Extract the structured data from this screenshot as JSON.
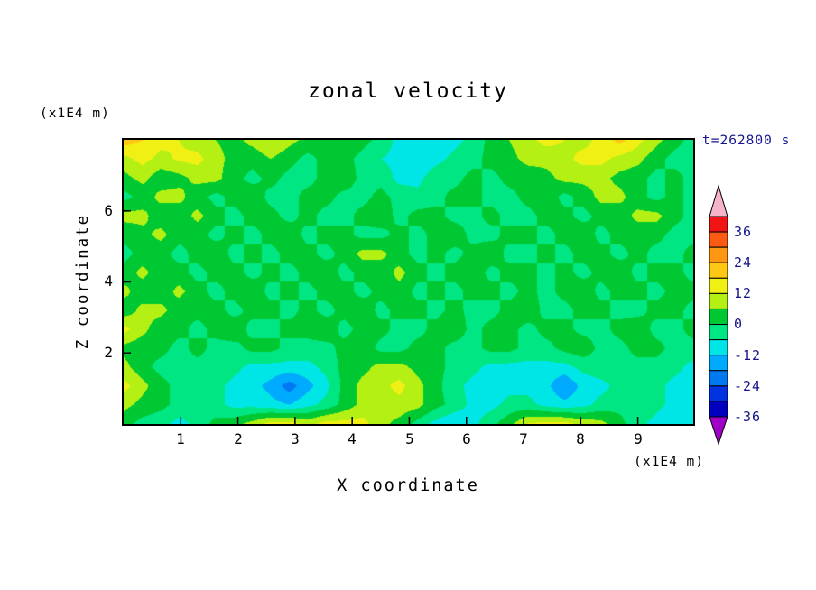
{
  "chart_data": {
    "type": "heatmap",
    "title": "zonal velocity",
    "xlabel": "X coordinate",
    "zlabel": "Z coordinate",
    "x_unit_label": "(x1E4 m)",
    "z_unit_label": "(x1E4 m)",
    "annotation": "t=262800 s",
    "x_range": [
      0,
      9.97
    ],
    "z_range": [
      0,
      8
    ],
    "x_ticks": [
      {
        "value": 1,
        "label": "1"
      },
      {
        "value": 2,
        "label": "2"
      },
      {
        "value": 3,
        "label": "3"
      },
      {
        "value": 4,
        "label": "4"
      },
      {
        "value": 5,
        "label": "5"
      },
      {
        "value": 6,
        "label": "6"
      },
      {
        "value": 7,
        "label": "7"
      },
      {
        "value": 8,
        "label": "8"
      },
      {
        "value": 9,
        "label": "9"
      }
    ],
    "z_ticks": [
      {
        "value": 2,
        "label": "2"
      },
      {
        "value": 4,
        "label": "4"
      },
      {
        "value": 6,
        "label": "6"
      }
    ],
    "colorbar": {
      "tick_labels": [
        "36",
        "24",
        "12",
        "0",
        "-12",
        "-24",
        "-36"
      ],
      "max": 42,
      "min": -36,
      "step": 6,
      "top_arrow_color": "#f5b4c8",
      "bottom_arrow_color": "#a000c8"
    },
    "levels": {
      "min": -36,
      "step": 6
    },
    "band_colors_low_to_high": [
      "#a000c8",
      "#0000be",
      "#0032e1",
      "#0078f0",
      "#00aaff",
      "#00e6e6",
      "#00e682",
      "#00c832",
      "#b4f014",
      "#f0f014",
      "#ffc814",
      "#ff9614",
      "#ff5a14",
      "#f01414",
      "#f5b4c8"
    ],
    "text_color": "#000000",
    "accent_text_color": "#15158c",
    "grid": {
      "nx": 32,
      "nz": 16,
      "values": [
        [
          21,
          18,
          14,
          12,
          9,
          6,
          4,
          8,
          12,
          8,
          4,
          2,
          4,
          2,
          -2,
          -8,
          -12,
          -12,
          -8,
          -4,
          2,
          6,
          10,
          14,
          12,
          10,
          14,
          20,
          14,
          8,
          2,
          -2
        ],
        [
          10,
          14,
          10,
          13,
          14,
          8,
          4,
          2,
          6,
          2,
          -2,
          2,
          2,
          -2,
          -6,
          -8,
          -12,
          -8,
          -4,
          -2,
          2,
          4,
          8,
          8,
          10,
          14,
          14,
          10,
          8,
          2,
          -2,
          -2
        ],
        [
          4,
          8,
          2,
          4,
          8,
          8,
          2,
          -2,
          2,
          -2,
          -2,
          2,
          4,
          -2,
          -2,
          -8,
          -8,
          -2,
          -2,
          2,
          -2,
          2,
          2,
          4,
          8,
          8,
          8,
          4,
          2,
          -2,
          2,
          -2
        ],
        [
          -2,
          2,
          8,
          8,
          2,
          -2,
          2,
          4,
          -2,
          -2,
          2,
          2,
          -2,
          -2,
          2,
          -2,
          -4,
          -2,
          2,
          2,
          -2,
          -2,
          2,
          4,
          -2,
          2,
          8,
          8,
          2,
          -2,
          2,
          -2
        ],
        [
          8,
          8,
          2,
          2,
          8,
          2,
          -2,
          2,
          2,
          -2,
          2,
          -2,
          -2,
          2,
          4,
          -2,
          2,
          2,
          -2,
          -2,
          2,
          -2,
          -2,
          2,
          2,
          -2,
          2,
          2,
          8,
          8,
          2,
          -2
        ],
        [
          2,
          4,
          8,
          2,
          2,
          -2,
          2,
          -2,
          2,
          4,
          -2,
          2,
          2,
          -2,
          -2,
          2,
          -2,
          2,
          4,
          -2,
          -2,
          2,
          2,
          -2,
          2,
          4,
          -2,
          2,
          2,
          2,
          -2,
          -2
        ],
        [
          -2,
          2,
          2,
          -2,
          2,
          4,
          -2,
          2,
          -2,
          2,
          2,
          -2,
          2,
          8,
          8,
          2,
          -2,
          2,
          -2,
          2,
          4,
          -2,
          -2,
          2,
          -2,
          2,
          2,
          -2,
          2,
          -2,
          -2,
          2
        ],
        [
          2,
          8,
          2,
          2,
          -2,
          2,
          2,
          -2,
          2,
          -2,
          2,
          4,
          -2,
          2,
          2,
          8,
          2,
          -2,
          2,
          4,
          -2,
          2,
          2,
          -2,
          2,
          -2,
          2,
          4,
          -2,
          2,
          2,
          -2
        ],
        [
          8,
          2,
          2,
          8,
          2,
          -2,
          2,
          4,
          -2,
          2,
          -2,
          2,
          2,
          -2,
          2,
          4,
          -2,
          2,
          -2,
          2,
          2,
          -2,
          2,
          -2,
          2,
          4,
          -2,
          2,
          2,
          -2,
          2,
          2
        ],
        [
          2,
          8,
          8,
          2,
          2,
          2,
          -2,
          2,
          2,
          -2,
          2,
          -2,
          2,
          4,
          -2,
          2,
          2,
          -2,
          2,
          -2,
          -2,
          2,
          4,
          -2,
          -2,
          2,
          2,
          -2,
          -2,
          2,
          2,
          -2
        ],
        [
          14,
          8,
          2,
          2,
          -2,
          2,
          4,
          -2,
          -2,
          2,
          2,
          4,
          -2,
          2,
          2,
          -2,
          -2,
          2,
          4,
          -2,
          2,
          2,
          -2,
          2,
          2,
          -2,
          -2,
          2,
          4,
          -2,
          -2,
          2
        ],
        [
          4,
          2,
          2,
          -2,
          2,
          -2,
          -2,
          2,
          2,
          -2,
          -2,
          -2,
          2,
          4,
          -2,
          -2,
          2,
          2,
          -2,
          -2,
          2,
          2,
          -2,
          -2,
          2,
          4,
          -2,
          -2,
          2,
          2,
          -2,
          -2
        ],
        [
          8,
          2,
          -2,
          -2,
          -2,
          -2,
          -4,
          -8,
          -8,
          -8,
          -8,
          -4,
          2,
          4,
          8,
          8,
          4,
          2,
          -2,
          -4,
          -8,
          -8,
          -8,
          -8,
          -8,
          -4,
          -2,
          -2,
          -2,
          -2,
          -4,
          -8
        ],
        [
          14,
          8,
          2,
          -2,
          -2,
          -4,
          -8,
          -10,
          -14,
          -21,
          -14,
          -8,
          2,
          8,
          10,
          14,
          8,
          2,
          -4,
          -8,
          -10,
          -8,
          -8,
          -10,
          -18,
          -10,
          -8,
          -4,
          -2,
          -4,
          -8,
          -8
        ],
        [
          8,
          4,
          2,
          -2,
          -2,
          -4,
          -8,
          -8,
          -10,
          -12,
          -8,
          -4,
          2,
          8,
          8,
          10,
          8,
          2,
          -2,
          -8,
          -8,
          -4,
          -4,
          -8,
          -10,
          -8,
          -4,
          -2,
          -2,
          -4,
          -8,
          -8
        ],
        [
          2,
          -2,
          -4,
          -8,
          -4,
          2,
          4,
          8,
          14,
          14,
          10,
          14,
          14,
          14,
          8,
          4,
          -2,
          -8,
          -12,
          -8,
          -2,
          4,
          12,
          14,
          14,
          10,
          8,
          2,
          -4,
          -8,
          -12,
          -8
        ]
      ]
    }
  }
}
